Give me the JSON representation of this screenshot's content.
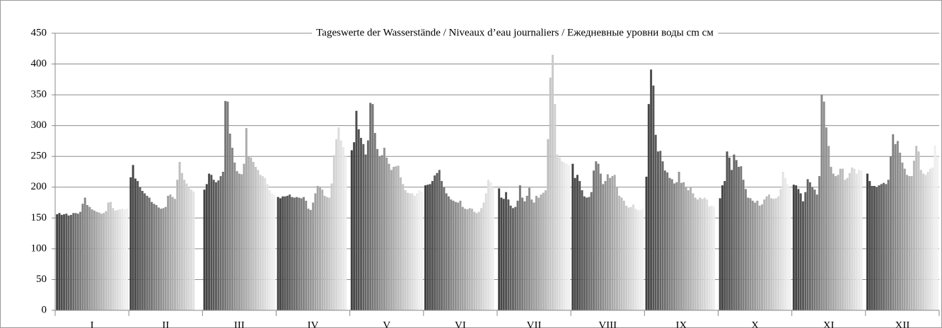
{
  "chart_data": {
    "type": "bar",
    "title": "Tageswerte der Wasserstände / Niveaux d’eau journaliers / Ежедневные уровни воды  cm  см",
    "categories": [
      "I",
      "II",
      "III",
      "IV",
      "V",
      "VI",
      "VII",
      "VIII",
      "IX",
      "X",
      "XI",
      "XII"
    ],
    "values": [
      [
        156,
        158,
        155,
        156,
        157,
        154,
        155,
        158,
        158,
        157,
        160,
        173,
        183,
        171,
        168,
        164,
        162,
        160,
        159,
        157,
        158,
        161,
        175,
        176,
        166,
        162,
        163,
        164,
        165,
        164,
        165
      ],
      [
        216,
        236,
        214,
        210,
        200,
        194,
        190,
        186,
        183,
        176,
        173,
        171,
        167,
        165,
        166,
        168,
        186,
        188,
        184,
        181,
        212,
        241,
        223,
        212,
        206,
        200,
        196,
        193
      ],
      [
        196,
        205,
        222,
        220,
        212,
        208,
        211,
        218,
        225,
        340,
        339,
        287,
        264,
        240,
        226,
        222,
        221,
        238,
        296,
        250,
        248,
        241,
        233,
        228,
        220,
        218,
        215,
        205,
        195,
        190,
        188
      ],
      [
        184,
        182,
        185,
        185,
        186,
        188,
        184,
        183,
        184,
        183,
        182,
        184,
        178,
        165,
        163,
        175,
        190,
        202,
        200,
        196,
        186,
        184,
        183,
        206,
        252,
        278,
        297,
        276,
        265,
        250
      ],
      [
        260,
        273,
        324,
        294,
        280,
        270,
        253,
        276,
        337,
        335,
        288,
        262,
        250,
        252,
        264,
        248,
        238,
        228,
        233,
        234,
        235,
        216,
        205,
        195,
        191,
        190,
        190,
        186,
        190,
        195,
        193
      ],
      [
        203,
        204,
        205,
        210,
        219,
        223,
        228,
        210,
        200,
        190,
        185,
        180,
        178,
        176,
        175,
        178,
        168,
        165,
        164,
        166,
        165,
        160,
        158,
        160,
        166,
        175,
        190,
        212,
        208,
        200
      ],
      [
        198,
        183,
        181,
        192,
        180,
        170,
        166,
        168,
        178,
        203,
        183,
        177,
        186,
        199,
        180,
        175,
        186,
        183,
        188,
        191,
        195,
        278,
        378,
        415,
        335,
        253,
        248,
        242,
        240,
        238,
        236
      ],
      [
        238,
        215,
        220,
        210,
        195,
        185,
        183,
        184,
        192,
        227,
        242,
        238,
        222,
        205,
        210,
        221,
        215,
        218,
        220,
        200,
        186,
        183,
        178,
        170,
        167,
        168,
        172,
        165,
        163,
        163,
        165
      ],
      [
        217,
        335,
        391,
        365,
        285,
        258,
        259,
        242,
        227,
        224,
        215,
        213,
        206,
        208,
        225,
        207,
        208,
        200,
        195,
        200,
        190,
        183,
        180,
        183,
        181,
        183,
        180,
        169,
        170,
        168
      ],
      [
        182,
        203,
        210,
        258,
        248,
        228,
        253,
        244,
        233,
        234,
        212,
        197,
        183,
        182,
        178,
        175,
        178,
        170,
        172,
        180,
        185,
        188,
        182,
        181,
        182,
        185,
        197,
        225,
        215,
        205,
        200
      ],
      [
        204,
        203,
        197,
        190,
        177,
        192,
        213,
        208,
        200,
        196,
        188,
        218,
        350,
        339,
        297,
        267,
        233,
        222,
        218,
        220,
        230,
        230,
        212,
        215,
        223,
        232,
        230,
        222,
        228,
        227
      ],
      [
        222,
        210,
        202,
        202,
        200,
        203,
        205,
        207,
        205,
        212,
        250,
        286,
        270,
        275,
        256,
        240,
        230,
        220,
        218,
        218,
        243,
        267,
        258,
        228,
        222,
        220,
        225,
        230,
        232,
        268,
        250
      ]
    ],
    "colors": [
      "#404040",
      "#464646",
      "#4c4c4c",
      "#525252",
      "#585858",
      "#5e5e5e",
      "#646464",
      "#6a6a6a",
      "#707070",
      "#767676",
      "#7c7c7c",
      "#828282",
      "#888888",
      "#8e8e8e",
      "#949494",
      "#9a9a9a",
      "#a0a0a0",
      "#a6a6a6",
      "#acacac",
      "#b2b2b2",
      "#b8b8b8",
      "#bebebe",
      "#c4c4c4",
      "#cacaca",
      "#d0d0d0",
      "#d6d6d6",
      "#dcdcdc",
      "#e2e2e2",
      "#e8e8e8",
      "#eeeeee",
      "#f0f0f0"
    ],
    "ylim": [
      0,
      450
    ],
    "yticks": [
      0,
      50,
      100,
      150,
      200,
      250,
      300,
      350,
      400,
      450
    ],
    "grid": true
  }
}
